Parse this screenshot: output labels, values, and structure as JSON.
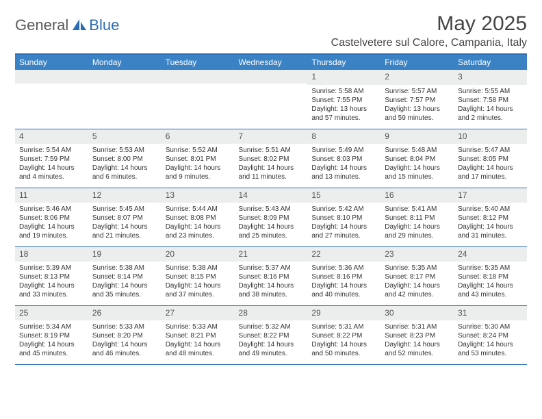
{
  "brand": {
    "part1": "General",
    "part2": "Blue"
  },
  "title": "May 2025",
  "location": "Castelvetere sul Calore, Campania, Italy",
  "colors": {
    "header_bg": "#3b82c4",
    "border": "#2a6db5",
    "daynum_bg": "#eceded",
    "text": "#333333"
  },
  "weekdays": [
    "Sunday",
    "Monday",
    "Tuesday",
    "Wednesday",
    "Thursday",
    "Friday",
    "Saturday"
  ],
  "weeks": [
    [
      {
        "n": "",
        "sr": "",
        "ss": "",
        "dl": ""
      },
      {
        "n": "",
        "sr": "",
        "ss": "",
        "dl": ""
      },
      {
        "n": "",
        "sr": "",
        "ss": "",
        "dl": ""
      },
      {
        "n": "",
        "sr": "",
        "ss": "",
        "dl": ""
      },
      {
        "n": "1",
        "sr": "Sunrise: 5:58 AM",
        "ss": "Sunset: 7:55 PM",
        "dl": "Daylight: 13 hours and 57 minutes."
      },
      {
        "n": "2",
        "sr": "Sunrise: 5:57 AM",
        "ss": "Sunset: 7:57 PM",
        "dl": "Daylight: 13 hours and 59 minutes."
      },
      {
        "n": "3",
        "sr": "Sunrise: 5:55 AM",
        "ss": "Sunset: 7:58 PM",
        "dl": "Daylight: 14 hours and 2 minutes."
      }
    ],
    [
      {
        "n": "4",
        "sr": "Sunrise: 5:54 AM",
        "ss": "Sunset: 7:59 PM",
        "dl": "Daylight: 14 hours and 4 minutes."
      },
      {
        "n": "5",
        "sr": "Sunrise: 5:53 AM",
        "ss": "Sunset: 8:00 PM",
        "dl": "Daylight: 14 hours and 6 minutes."
      },
      {
        "n": "6",
        "sr": "Sunrise: 5:52 AM",
        "ss": "Sunset: 8:01 PM",
        "dl": "Daylight: 14 hours and 9 minutes."
      },
      {
        "n": "7",
        "sr": "Sunrise: 5:51 AM",
        "ss": "Sunset: 8:02 PM",
        "dl": "Daylight: 14 hours and 11 minutes."
      },
      {
        "n": "8",
        "sr": "Sunrise: 5:49 AM",
        "ss": "Sunset: 8:03 PM",
        "dl": "Daylight: 14 hours and 13 minutes."
      },
      {
        "n": "9",
        "sr": "Sunrise: 5:48 AM",
        "ss": "Sunset: 8:04 PM",
        "dl": "Daylight: 14 hours and 15 minutes."
      },
      {
        "n": "10",
        "sr": "Sunrise: 5:47 AM",
        "ss": "Sunset: 8:05 PM",
        "dl": "Daylight: 14 hours and 17 minutes."
      }
    ],
    [
      {
        "n": "11",
        "sr": "Sunrise: 5:46 AM",
        "ss": "Sunset: 8:06 PM",
        "dl": "Daylight: 14 hours and 19 minutes."
      },
      {
        "n": "12",
        "sr": "Sunrise: 5:45 AM",
        "ss": "Sunset: 8:07 PM",
        "dl": "Daylight: 14 hours and 21 minutes."
      },
      {
        "n": "13",
        "sr": "Sunrise: 5:44 AM",
        "ss": "Sunset: 8:08 PM",
        "dl": "Daylight: 14 hours and 23 minutes."
      },
      {
        "n": "14",
        "sr": "Sunrise: 5:43 AM",
        "ss": "Sunset: 8:09 PM",
        "dl": "Daylight: 14 hours and 25 minutes."
      },
      {
        "n": "15",
        "sr": "Sunrise: 5:42 AM",
        "ss": "Sunset: 8:10 PM",
        "dl": "Daylight: 14 hours and 27 minutes."
      },
      {
        "n": "16",
        "sr": "Sunrise: 5:41 AM",
        "ss": "Sunset: 8:11 PM",
        "dl": "Daylight: 14 hours and 29 minutes."
      },
      {
        "n": "17",
        "sr": "Sunrise: 5:40 AM",
        "ss": "Sunset: 8:12 PM",
        "dl": "Daylight: 14 hours and 31 minutes."
      }
    ],
    [
      {
        "n": "18",
        "sr": "Sunrise: 5:39 AM",
        "ss": "Sunset: 8:13 PM",
        "dl": "Daylight: 14 hours and 33 minutes."
      },
      {
        "n": "19",
        "sr": "Sunrise: 5:38 AM",
        "ss": "Sunset: 8:14 PM",
        "dl": "Daylight: 14 hours and 35 minutes."
      },
      {
        "n": "20",
        "sr": "Sunrise: 5:38 AM",
        "ss": "Sunset: 8:15 PM",
        "dl": "Daylight: 14 hours and 37 minutes."
      },
      {
        "n": "21",
        "sr": "Sunrise: 5:37 AM",
        "ss": "Sunset: 8:16 PM",
        "dl": "Daylight: 14 hours and 38 minutes."
      },
      {
        "n": "22",
        "sr": "Sunrise: 5:36 AM",
        "ss": "Sunset: 8:16 PM",
        "dl": "Daylight: 14 hours and 40 minutes."
      },
      {
        "n": "23",
        "sr": "Sunrise: 5:35 AM",
        "ss": "Sunset: 8:17 PM",
        "dl": "Daylight: 14 hours and 42 minutes."
      },
      {
        "n": "24",
        "sr": "Sunrise: 5:35 AM",
        "ss": "Sunset: 8:18 PM",
        "dl": "Daylight: 14 hours and 43 minutes."
      }
    ],
    [
      {
        "n": "25",
        "sr": "Sunrise: 5:34 AM",
        "ss": "Sunset: 8:19 PM",
        "dl": "Daylight: 14 hours and 45 minutes."
      },
      {
        "n": "26",
        "sr": "Sunrise: 5:33 AM",
        "ss": "Sunset: 8:20 PM",
        "dl": "Daylight: 14 hours and 46 minutes."
      },
      {
        "n": "27",
        "sr": "Sunrise: 5:33 AM",
        "ss": "Sunset: 8:21 PM",
        "dl": "Daylight: 14 hours and 48 minutes."
      },
      {
        "n": "28",
        "sr": "Sunrise: 5:32 AM",
        "ss": "Sunset: 8:22 PM",
        "dl": "Daylight: 14 hours and 49 minutes."
      },
      {
        "n": "29",
        "sr": "Sunrise: 5:31 AM",
        "ss": "Sunset: 8:22 PM",
        "dl": "Daylight: 14 hours and 50 minutes."
      },
      {
        "n": "30",
        "sr": "Sunrise: 5:31 AM",
        "ss": "Sunset: 8:23 PM",
        "dl": "Daylight: 14 hours and 52 minutes."
      },
      {
        "n": "31",
        "sr": "Sunrise: 5:30 AM",
        "ss": "Sunset: 8:24 PM",
        "dl": "Daylight: 14 hours and 53 minutes."
      }
    ]
  ]
}
